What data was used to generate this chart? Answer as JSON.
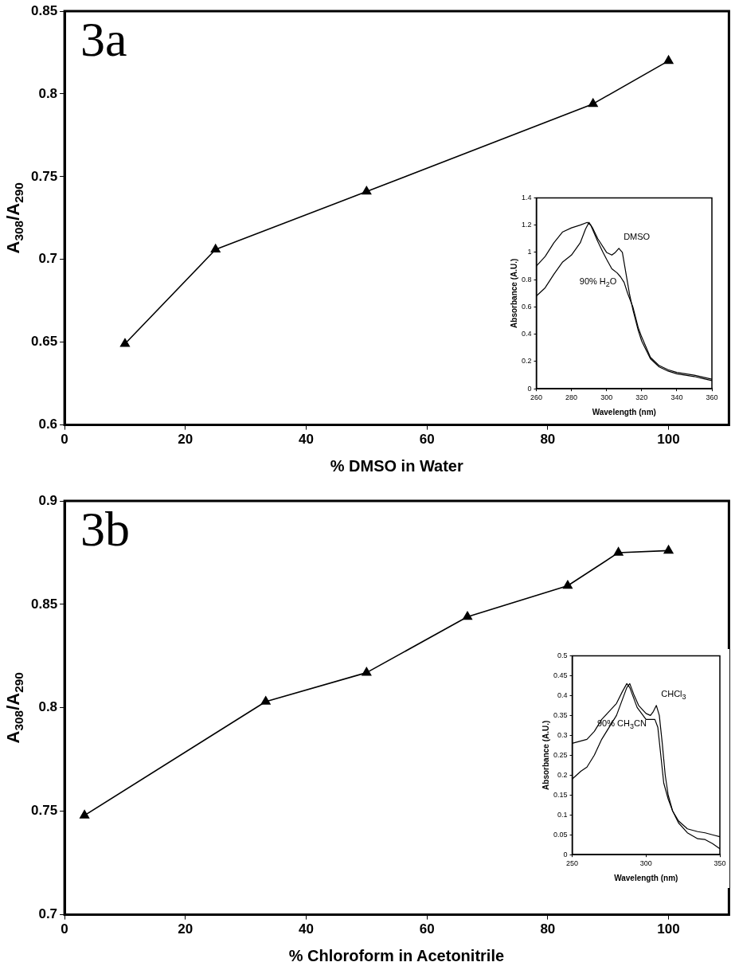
{
  "chart_data": [
    {
      "type": "line",
      "title": "3a",
      "xlabel": "% DMSO in Water",
      "ylabel": "A$_{308}$/A$_{290}$",
      "marker": "triangle",
      "line_style": "solid",
      "grid": false,
      "legend": false,
      "x": [
        10,
        25,
        50,
        87.5,
        100
      ],
      "series": [
        {
          "color": "#000000",
          "values": [
            0.649,
            0.706,
            0.741,
            0.794,
            0.82
          ]
        }
      ],
      "xlim": [
        0,
        110
      ],
      "xticks": [
        0,
        20,
        40,
        60,
        80,
        100
      ],
      "ylim": [
        0.6,
        0.85
      ],
      "yticks": [
        0.6,
        0.65,
        0.7,
        0.75,
        0.8,
        0.85
      ]
    },
    {
      "type": "line",
      "xlabel": "Wavelength (nm)",
      "ylabel": "Absorbance (A.U.)",
      "marker": "none",
      "line_style": "solid",
      "grid": false,
      "legend": false,
      "series": [
        {
          "name": "DMSO",
          "color": "#000000",
          "x": [
            260,
            265,
            270,
            275,
            280,
            285,
            288,
            290,
            292,
            295,
            300,
            303,
            305,
            307,
            309,
            311,
            313,
            315,
            318,
            320,
            325,
            330,
            335,
            340,
            345,
            350,
            355,
            360
          ],
          "values": [
            0.68,
            0.74,
            0.84,
            0.93,
            0.98,
            1.07,
            1.17,
            1.22,
            1.18,
            1.1,
            1.0,
            0.98,
            1.0,
            1.03,
            1.0,
            0.85,
            0.7,
            0.58,
            0.43,
            0.35,
            0.22,
            0.16,
            0.13,
            0.11,
            0.1,
            0.09,
            0.075,
            0.06
          ]
        },
        {
          "name": "90% H$_{2}$O",
          "color": "#000000",
          "x": [
            260,
            265,
            270,
            275,
            280,
            285,
            289,
            291,
            293,
            295,
            298,
            300,
            303,
            306,
            308,
            310,
            312,
            315,
            318,
            320,
            325,
            330,
            335,
            340,
            345,
            350,
            355,
            360
          ],
          "values": [
            0.9,
            0.97,
            1.07,
            1.15,
            1.18,
            1.2,
            1.22,
            1.2,
            1.14,
            1.08,
            1.0,
            0.95,
            0.88,
            0.85,
            0.82,
            0.78,
            0.7,
            0.6,
            0.45,
            0.38,
            0.23,
            0.17,
            0.14,
            0.12,
            0.11,
            0.1,
            0.085,
            0.07
          ]
        }
      ],
      "xlim": [
        260,
        360
      ],
      "xticks": [
        260,
        280,
        300,
        320,
        340,
        360
      ],
      "ylim": [
        0,
        1.4
      ],
      "yticks": [
        0,
        0.2,
        0.4,
        0.6,
        0.8,
        1,
        1.2,
        1.4
      ]
    },
    {
      "type": "line",
      "title": "3b",
      "xlabel": "% Chloroform in Acetonitrile",
      "ylabel": "A$_{308}$/A$_{290}$",
      "marker": "triangle",
      "line_style": "solid",
      "grid": false,
      "legend": false,
      "x": [
        3.3,
        33.3,
        50,
        66.7,
        83.3,
        91.7,
        100
      ],
      "series": [
        {
          "color": "#000000",
          "values": [
            0.748,
            0.803,
            0.817,
            0.844,
            0.859,
            0.875,
            0.876
          ]
        }
      ],
      "xlim": [
        0,
        110
      ],
      "xticks": [
        0,
        20,
        40,
        60,
        80,
        100
      ],
      "ylim": [
        0.7,
        0.9
      ],
      "yticks": [
        0.7,
        0.75,
        0.8,
        0.85,
        0.9
      ]
    },
    {
      "type": "line",
      "xlabel": "Wavelength (nm)",
      "ylabel": "Absorbance (A.U.)",
      "marker": "none",
      "line_style": "solid",
      "grid": false,
      "legend": false,
      "series": [
        {
          "name": "CHCl$_{3}$",
          "color": "#000000",
          "x": [
            250,
            256,
            260,
            265,
            270,
            275,
            280,
            284,
            287,
            289,
            292,
            295,
            300,
            303,
            305,
            307,
            309,
            311,
            313,
            315,
            318,
            322,
            328,
            335,
            340,
            345,
            350
          ],
          "values": [
            0.19,
            0.21,
            0.22,
            0.25,
            0.29,
            0.32,
            0.35,
            0.39,
            0.42,
            0.43,
            0.4,
            0.375,
            0.355,
            0.35,
            0.36,
            0.375,
            0.35,
            0.28,
            0.2,
            0.15,
            0.11,
            0.08,
            0.055,
            0.04,
            0.038,
            0.028,
            0.015
          ]
        },
        {
          "name": "90% CH$_{3}$CN",
          "color": "#000000",
          "x": [
            250,
            255,
            260,
            265,
            270,
            275,
            280,
            284,
            287,
            289,
            291,
            294,
            297,
            300,
            303,
            306,
            308,
            310,
            312,
            315,
            318,
            322,
            328,
            335,
            340,
            345,
            350
          ],
          "values": [
            0.28,
            0.285,
            0.29,
            0.31,
            0.34,
            0.36,
            0.38,
            0.41,
            0.43,
            0.42,
            0.4,
            0.37,
            0.355,
            0.34,
            0.34,
            0.34,
            0.32,
            0.25,
            0.18,
            0.14,
            0.11,
            0.085,
            0.065,
            0.058,
            0.055,
            0.05,
            0.045
          ]
        }
      ],
      "xlim": [
        250,
        350
      ],
      "xticks": [
        250,
        300,
        350
      ],
      "ylim": [
        0,
        0.5
      ],
      "yticks": [
        0,
        0.05,
        0.1,
        0.15,
        0.2,
        0.25,
        0.3,
        0.35,
        0.4,
        0.45,
        0.5
      ]
    }
  ]
}
